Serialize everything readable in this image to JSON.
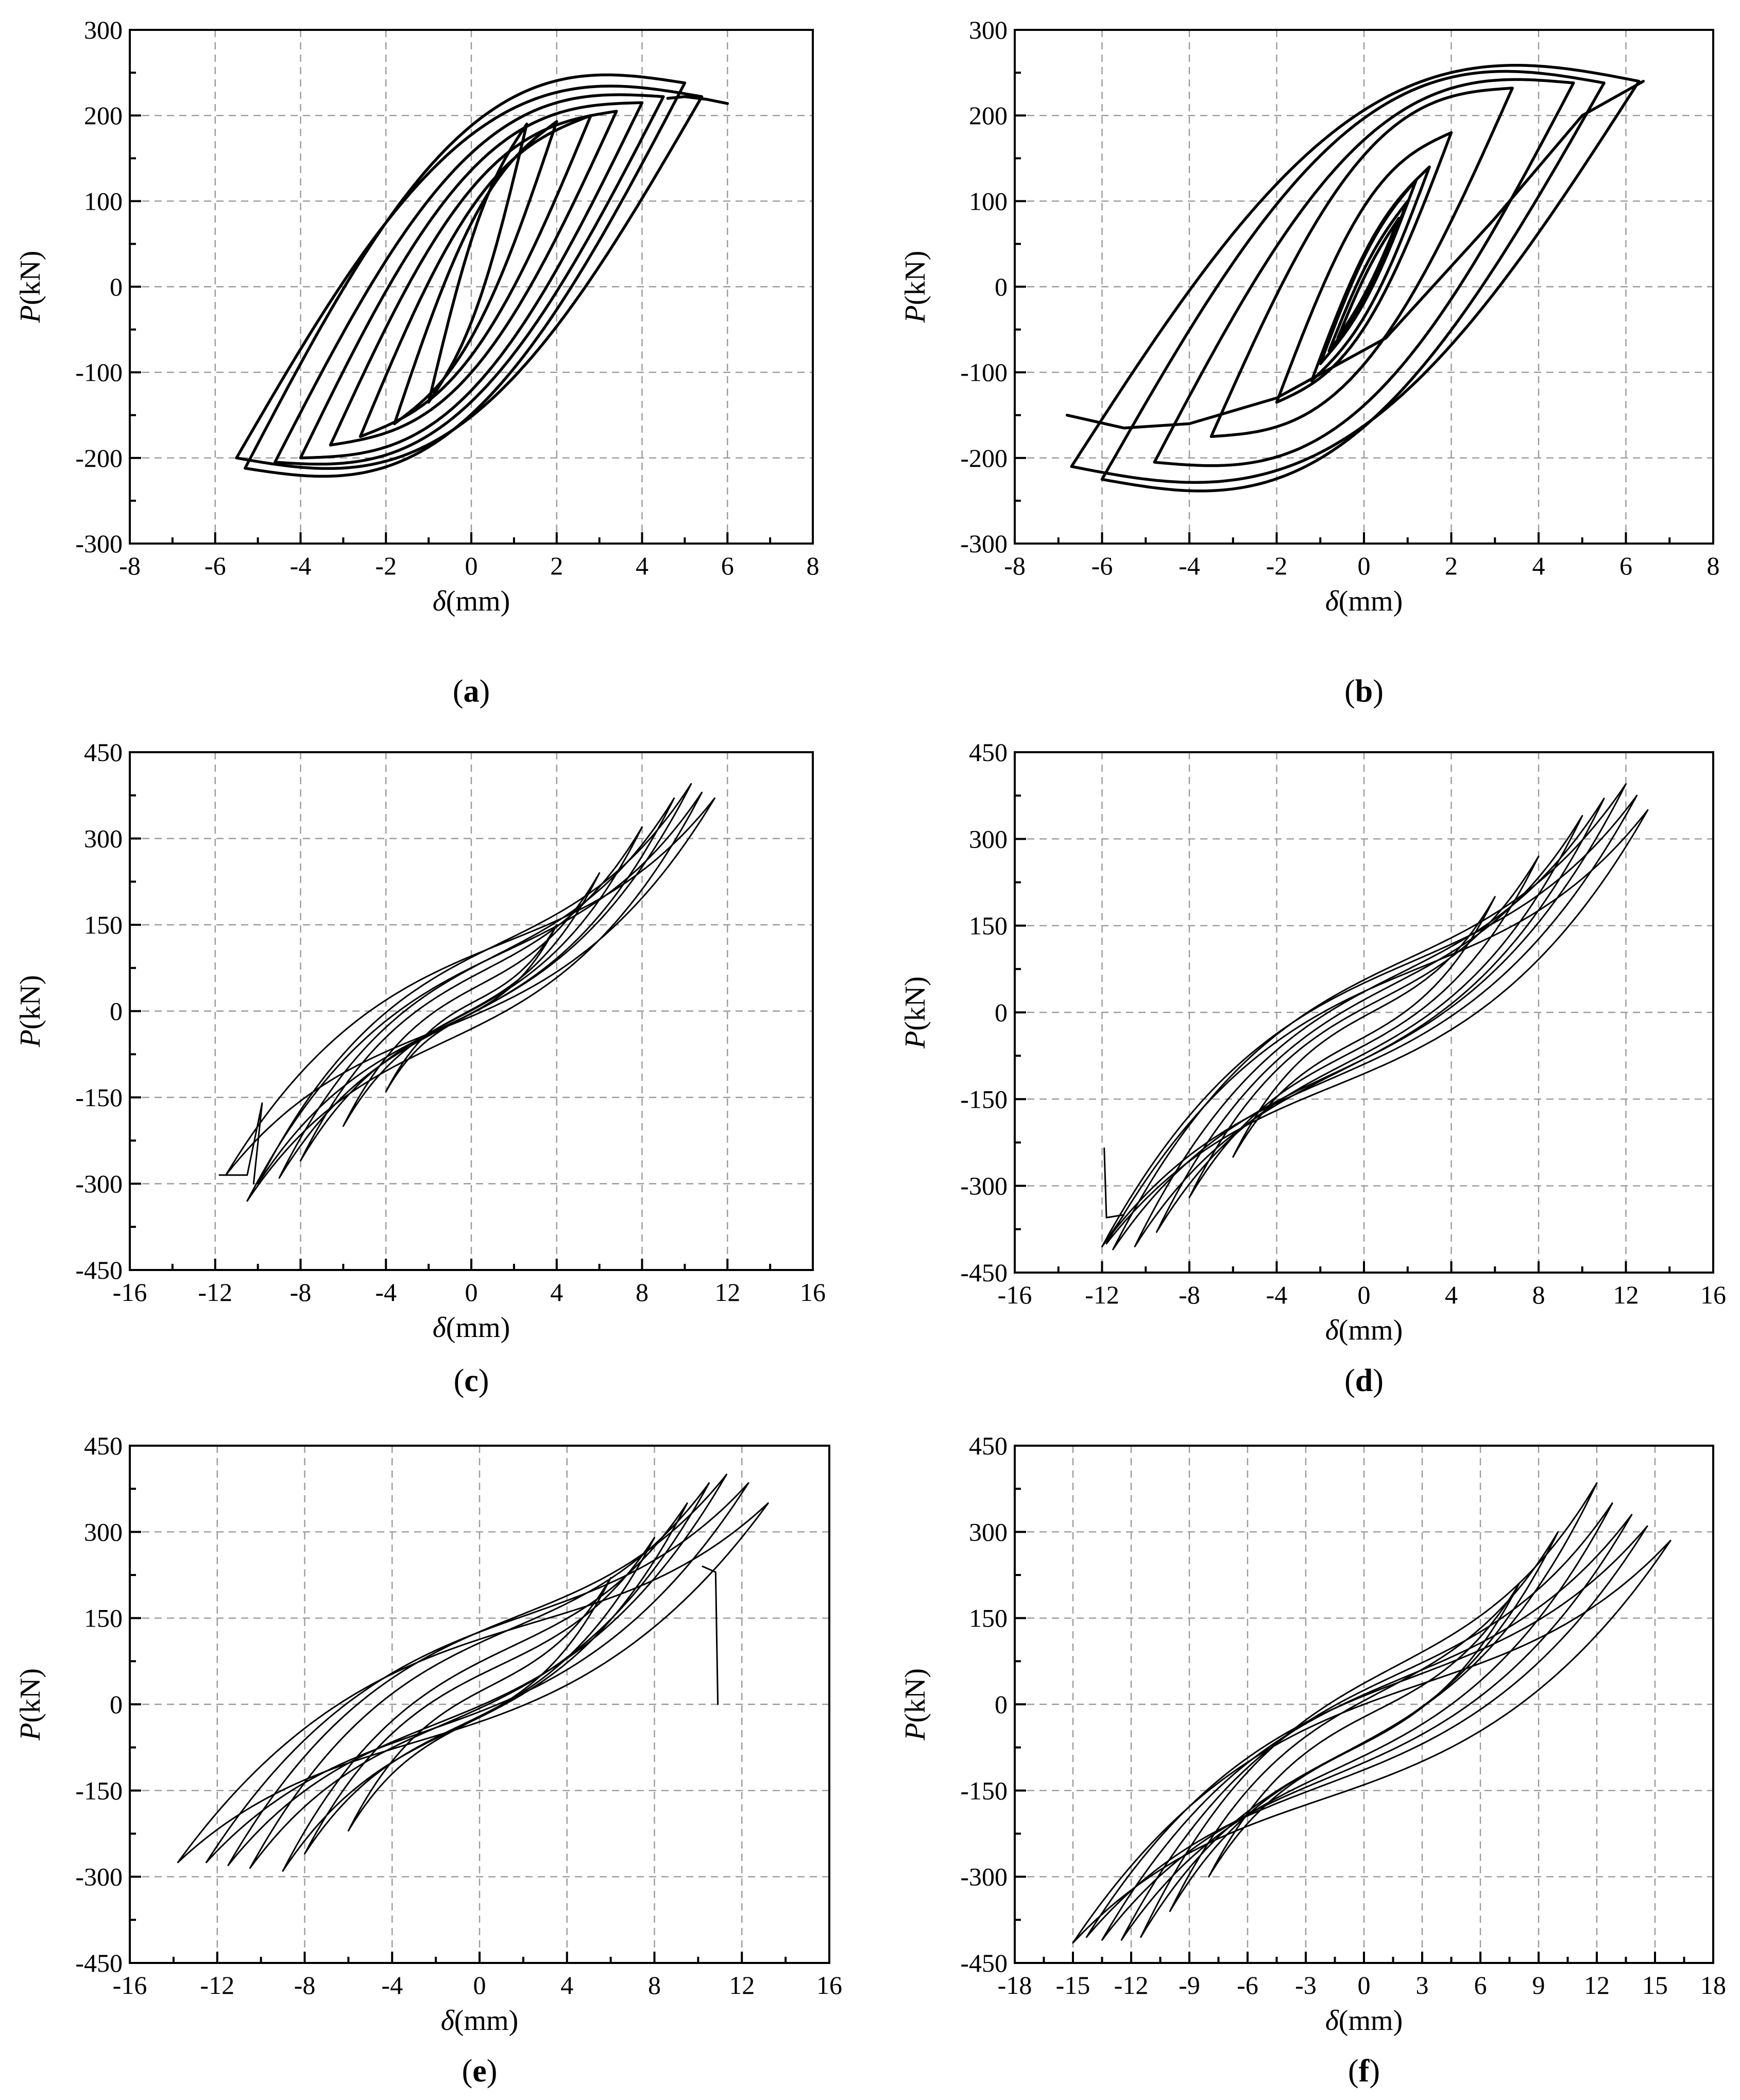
{
  "chart_data": [
    {
      "id": "a",
      "type": "line",
      "panel_label": "a",
      "xlabel_symbol": "δ",
      "xlabel_unit": "(mm)",
      "ylabel_symbol": "P",
      "ylabel_unit": "(kN)",
      "xlim": [
        -8,
        8
      ],
      "ylim": [
        -300,
        300
      ],
      "xticks": [
        -8,
        -6,
        -4,
        -2,
        0,
        2,
        4,
        6,
        8
      ],
      "yticks": [
        -300,
        -200,
        -100,
        0,
        100,
        200,
        300
      ],
      "grid": true,
      "line_weight": "heavy",
      "series": [
        {
          "loops": [
            {
              "dmax": 1.3,
              "pmax": 190,
              "dmin": -1.0,
              "pmin": -135,
              "w": 0.3
            },
            {
              "dmax": 2.0,
              "pmax": 193,
              "dmin": -1.8,
              "pmin": -160,
              "w": 0.38
            },
            {
              "dmax": 2.8,
              "pmax": 200,
              "dmin": -2.6,
              "pmin": -175,
              "w": 0.46
            },
            {
              "dmax": 3.4,
              "pmax": 205,
              "dmin": -3.3,
              "pmin": -185,
              "w": 0.55
            },
            {
              "dmax": 4.0,
              "pmax": 215,
              "dmin": -4.0,
              "pmin": -200,
              "w": 0.62
            },
            {
              "dmax": 4.5,
              "pmax": 222,
              "dmin": -4.6,
              "pmin": -205,
              "w": 0.68
            },
            {
              "dmax": 5.0,
              "pmax": 238,
              "dmin": -5.3,
              "pmin": -212,
              "w": 0.75
            },
            {
              "dmax": 5.4,
              "pmax": 222,
              "dmin": -5.5,
              "pmin": -200,
              "w": 0.78
            }
          ],
          "tail": {
            "x": [
              4.6,
              5.0,
              5.5,
              6.0
            ],
            "y": [
              220,
              222,
              219,
              214
            ]
          }
        }
      ]
    },
    {
      "id": "b",
      "type": "line",
      "panel_label": "b",
      "xlabel_symbol": "δ",
      "xlabel_unit": "(mm)",
      "ylabel_symbol": "P",
      "ylabel_unit": "(kN)",
      "xlim": [
        -8,
        8
      ],
      "ylim": [
        -300,
        300
      ],
      "xticks": [
        -8,
        -6,
        -4,
        -2,
        0,
        2,
        4,
        6,
        8
      ],
      "yticks": [
        -300,
        -200,
        -100,
        0,
        100,
        200,
        300
      ],
      "grid": true,
      "line_weight": "heavy",
      "series": [
        {
          "loops": [
            {
              "dmax": 0.8,
              "pmax": 80,
              "dmin": -0.6,
              "pmin": -60,
              "w": 0.15
            },
            {
              "dmax": 1.0,
              "pmax": 100,
              "dmin": -0.8,
              "pmin": -75,
              "w": 0.2
            },
            {
              "dmax": 1.2,
              "pmax": 125,
              "dmin": -1.0,
              "pmin": -90,
              "w": 0.25
            },
            {
              "dmax": 1.5,
              "pmax": 140,
              "dmin": -1.2,
              "pmin": -110,
              "w": 0.3
            },
            {
              "dmax": 2.0,
              "pmax": 180,
              "dmin": -2.0,
              "pmin": -135,
              "w": 0.45
            },
            {
              "dmax": 3.4,
              "pmax": 232,
              "dmin": -3.5,
              "pmin": -175,
              "w": 0.6
            },
            {
              "dmax": 4.8,
              "pmax": 238,
              "dmin": -4.8,
              "pmin": -205,
              "w": 0.7
            },
            {
              "dmax": 5.5,
              "pmax": 238,
              "dmin": -6.0,
              "pmin": -225,
              "w": 0.78
            },
            {
              "dmax": 6.3,
              "pmax": 240,
              "dmin": -6.7,
              "pmin": -210,
              "w": 0.82
            }
          ],
          "tail": {
            "x": [
              -6.8,
              -5.5,
              -4.0,
              -2.0,
              0.5,
              3.0,
              5.0,
              6.4
            ],
            "y": [
              -150,
              -165,
              -160,
              -130,
              -60,
              80,
              200,
              240
            ]
          }
        }
      ]
    },
    {
      "id": "c",
      "type": "line",
      "panel_label": "c",
      "xlabel_symbol": "δ",
      "xlabel_unit": "(mm)",
      "ylabel_symbol": "P",
      "ylabel_unit": "(kN)",
      "xlim": [
        -16,
        16
      ],
      "ylim": [
        -450,
        450
      ],
      "xticks": [
        -16,
        -12,
        -8,
        -4,
        0,
        4,
        8,
        12,
        16
      ],
      "yticks": [
        -450,
        -300,
        -150,
        0,
        150,
        300,
        450
      ],
      "grid": true,
      "line_weight": "thin",
      "shape": "s",
      "series": [
        {
          "loops": [
            {
              "dmax": 4,
              "pmax": 150,
              "dmin": -4,
              "pmin": -140,
              "w": 0.06
            },
            {
              "dmax": 6,
              "pmax": 240,
              "dmin": -6,
              "pmin": -200,
              "w": 0.08
            },
            {
              "dmax": 8,
              "pmax": 320,
              "dmin": -8,
              "pmin": -260,
              "w": 0.1
            },
            {
              "dmax": 9.5,
              "pmax": 370,
              "dmin": -9,
              "pmin": -290,
              "w": 0.12
            },
            {
              "dmax": 10.3,
              "pmax": 395,
              "dmin": -10,
              "pmin": -300,
              "w": 0.14
            },
            {
              "dmax": 10.8,
              "pmax": 380,
              "dmin": -10.5,
              "pmin": -330,
              "w": 0.15
            },
            {
              "dmax": 11.4,
              "pmax": 370,
              "dmin": -11.5,
              "pmin": -285,
              "w": 0.16
            }
          ],
          "tail": {
            "x": [
              -11.8,
              -10.5,
              -9.8,
              -10.2
            ],
            "y": [
              -285,
              -285,
              -160,
              -300
            ]
          }
        }
      ]
    },
    {
      "id": "d",
      "type": "line",
      "panel_label": "d",
      "xlabel_symbol": "δ",
      "xlabel_unit": "(mm)",
      "ylabel_symbol": "P",
      "ylabel_unit": "(kN)",
      "xlim": [
        -16,
        16
      ],
      "ylim": [
        -450,
        450
      ],
      "xticks": [
        -16,
        -12,
        -8,
        -4,
        0,
        4,
        8,
        12,
        16
      ],
      "yticks": [
        -450,
        -300,
        -150,
        0,
        150,
        300,
        450
      ],
      "grid": true,
      "line_weight": "thin",
      "shape": "s",
      "series": [
        {
          "loops": [
            {
              "dmax": 6,
              "pmax": 200,
              "dmin": -6,
              "pmin": -250,
              "w": 0.08
            },
            {
              "dmax": 8,
              "pmax": 270,
              "dmin": -8,
              "pmin": -320,
              "w": 0.11
            },
            {
              "dmax": 10,
              "pmax": 340,
              "dmin": -9.5,
              "pmin": -380,
              "w": 0.13
            },
            {
              "dmax": 11,
              "pmax": 370,
              "dmin": -10.5,
              "pmin": -405,
              "w": 0.15
            },
            {
              "dmax": 12,
              "pmax": 395,
              "dmin": -11.5,
              "pmin": -410,
              "w": 0.17
            },
            {
              "dmax": 12.5,
              "pmax": 375,
              "dmin": -12,
              "pmin": -405,
              "w": 0.18
            },
            {
              "dmax": 13,
              "pmax": 350,
              "dmin": -11.8,
              "pmin": -400,
              "w": 0.19
            }
          ],
          "tail": {
            "x": [
              -11.9,
              -11.8,
              -11.0,
              -12.0
            ],
            "y": [
              -235,
              -355,
              -350,
              -405
            ]
          }
        }
      ]
    },
    {
      "id": "e",
      "type": "line",
      "panel_label": "e",
      "xlabel_symbol": "δ",
      "xlabel_unit": "(mm)",
      "ylabel_symbol": "P",
      "ylabel_unit": "(kN)",
      "xlim": [
        -16,
        16
      ],
      "ylim": [
        -450,
        450
      ],
      "xticks": [
        -16,
        -12,
        -8,
        -4,
        0,
        4,
        8,
        12,
        16
      ],
      "yticks": [
        -450,
        -300,
        -150,
        0,
        150,
        300,
        450
      ],
      "grid": true,
      "line_weight": "thin",
      "shape": "s",
      "series": [
        {
          "loops": [
            {
              "dmax": 6,
              "pmax": 220,
              "dmin": -6,
              "pmin": -220,
              "w": 0.1
            },
            {
              "dmax": 8,
              "pmax": 290,
              "dmin": -8,
              "pmin": -260,
              "w": 0.13
            },
            {
              "dmax": 9.5,
              "pmax": 350,
              "dmin": -9,
              "pmin": -290,
              "w": 0.15
            },
            {
              "dmax": 10.5,
              "pmax": 385,
              "dmin": -10.5,
              "pmin": -285,
              "w": 0.17
            },
            {
              "dmax": 11.3,
              "pmax": 400,
              "dmin": -11.5,
              "pmin": -280,
              "w": 0.19
            },
            {
              "dmax": 12.3,
              "pmax": 385,
              "dmin": -12.5,
              "pmin": -275,
              "w": 0.21
            },
            {
              "dmax": 13.2,
              "pmax": 350,
              "dmin": -13.8,
              "pmin": -275,
              "w": 0.23
            }
          ],
          "tail": {
            "x": [
              10.2,
              10.8,
              10.9
            ],
            "y": [
              240,
              230,
              0
            ]
          }
        }
      ]
    },
    {
      "id": "f",
      "type": "line",
      "panel_label": "f",
      "xlabel_symbol": "δ",
      "xlabel_unit": "(mm)",
      "ylabel_symbol": "P",
      "ylabel_unit": "(kN)",
      "xlim": [
        -18,
        18
      ],
      "ylim": [
        -450,
        450
      ],
      "xticks": [
        -18,
        -15,
        -12,
        -9,
        -6,
        -3,
        0,
        3,
        6,
        9,
        12,
        15,
        18
      ],
      "yticks": [
        -450,
        -300,
        -150,
        0,
        150,
        300,
        450
      ],
      "grid": true,
      "line_weight": "thin",
      "shape": "s",
      "series": [
        {
          "loops": [
            {
              "dmax": 8,
              "pmax": 210,
              "dmin": -8,
              "pmin": -300,
              "w": 0.09
            },
            {
              "dmax": 10,
              "pmax": 300,
              "dmin": -10,
              "pmin": -360,
              "w": 0.11
            },
            {
              "dmax": 12,
              "pmax": 385,
              "dmin": -11.5,
              "pmin": -405,
              "w": 0.13
            },
            {
              "dmax": 12.8,
              "pmax": 350,
              "dmin": -12.5,
              "pmin": -410,
              "w": 0.15
            },
            {
              "dmax": 13.8,
              "pmax": 330,
              "dmin": -13.5,
              "pmin": -410,
              "w": 0.16
            },
            {
              "dmax": 14.6,
              "pmax": 310,
              "dmin": -14.3,
              "pmin": -405,
              "w": 0.18
            },
            {
              "dmax": 15.8,
              "pmax": 285,
              "dmin": -15,
              "pmin": -415,
              "w": 0.2
            }
          ]
        }
      ]
    }
  ]
}
